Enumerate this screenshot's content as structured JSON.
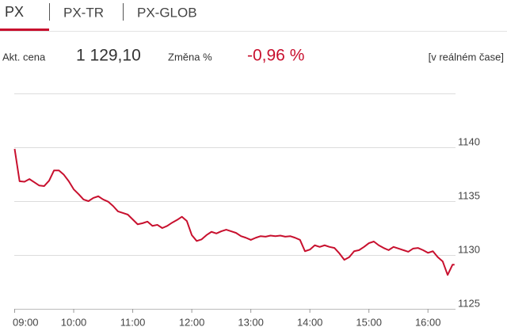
{
  "tabs": [
    "PX",
    "PX-TR",
    "PX-GLOB"
  ],
  "quote": {
    "label": "Akt. cena",
    "price": "1 129,10",
    "change_label": "Změna %",
    "change": "-0,96 %",
    "note": "[v reálném čase]"
  },
  "chart_data": {
    "type": "line",
    "color": "#c8102e",
    "grid": true,
    "x": [
      540,
      545,
      550,
      555,
      560,
      565,
      570,
      575,
      580,
      585,
      590,
      595,
      600,
      605,
      610,
      615,
      620,
      625,
      630,
      635,
      640,
      645,
      650,
      655,
      660,
      665,
      670,
      675,
      680,
      685,
      690,
      695,
      700,
      705,
      710,
      715,
      720,
      725,
      730,
      735,
      740,
      745,
      750,
      755,
      760,
      765,
      770,
      775,
      780,
      785,
      790,
      795,
      800,
      805,
      810,
      815,
      820,
      825,
      830,
      835,
      840,
      845,
      850,
      855,
      860,
      865,
      870,
      875,
      880,
      885,
      890,
      895,
      900,
      905,
      910,
      915,
      920,
      925,
      930,
      935,
      940,
      945,
      950,
      955,
      960,
      965,
      970,
      975,
      980,
      985,
      987
    ],
    "values": [
      1139.85,
      1136.85,
      1136.8,
      1137.05,
      1136.75,
      1136.45,
      1136.4,
      1136.9,
      1137.85,
      1137.85,
      1137.45,
      1136.85,
      1136.1,
      1135.65,
      1135.15,
      1135.0,
      1135.3,
      1135.45,
      1135.15,
      1134.95,
      1134.55,
      1134.05,
      1133.9,
      1133.75,
      1133.3,
      1132.85,
      1132.95,
      1133.1,
      1132.7,
      1132.8,
      1132.5,
      1132.7,
      1133.0,
      1133.25,
      1133.55,
      1133.15,
      1131.85,
      1131.3,
      1131.45,
      1131.85,
      1132.15,
      1132.0,
      1132.2,
      1132.35,
      1132.2,
      1132.05,
      1131.75,
      1131.6,
      1131.4,
      1131.6,
      1131.75,
      1131.7,
      1131.8,
      1131.75,
      1131.8,
      1131.7,
      1131.75,
      1131.6,
      1131.4,
      1130.35,
      1130.5,
      1130.9,
      1130.75,
      1130.9,
      1130.75,
      1130.65,
      1130.15,
      1129.55,
      1129.8,
      1130.35,
      1130.45,
      1130.75,
      1131.1,
      1131.25,
      1130.9,
      1130.65,
      1130.45,
      1130.75,
      1130.6,
      1130.45,
      1130.3,
      1130.6,
      1130.65,
      1130.45,
      1130.2,
      1130.35,
      1129.8,
      1129.4,
      1128.15,
      1129.1,
      1129.1
    ],
    "xlim": [
      540,
      988
    ],
    "xticks": [
      {
        "value": 540,
        "label": "09:00"
      },
      {
        "value": 600,
        "label": "10:00"
      },
      {
        "value": 660,
        "label": "11:00"
      },
      {
        "value": 720,
        "label": "12:00"
      },
      {
        "value": 780,
        "label": "13:00"
      },
      {
        "value": 840,
        "label": "14:00"
      },
      {
        "value": 900,
        "label": "15:00"
      },
      {
        "value": 960,
        "label": "16:00"
      }
    ],
    "ylim": [
      1125,
      1145
    ],
    "yticks": [
      1125,
      1130,
      1135,
      1140
    ]
  }
}
